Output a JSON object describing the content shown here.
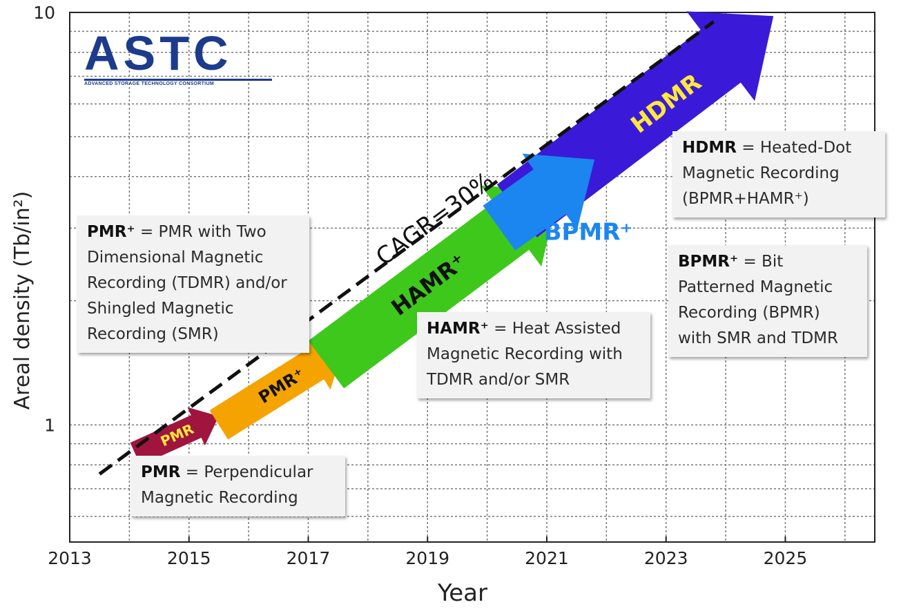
{
  "logo": {
    "name": "ASTC",
    "subtitle": "ADVANCED STORAGE TECHNOLOGY CONSORTIUM"
  },
  "annotations": {
    "cagr": "CAGR=30%",
    "arrow_labels": [
      "PMR",
      "PMR⁺",
      "HAMR⁺",
      "BPMR⁺",
      "HDMR"
    ]
  },
  "legend_boxes": {
    "pmr": {
      "term": "PMR",
      "definition": "= Perpendicular Magnetic Recording"
    },
    "pmr_plus": {
      "term": "PMR⁺",
      "definition": "= PMR with Two Dimensional Magnetic Recording (TDMR) and/or Shingled Magnetic Recording (SMR)"
    },
    "hamr_plus": {
      "term": "HAMR⁺",
      "definition": "= Heat Assisted Magnetic Recording with TDMR and/or SMR"
    },
    "bpmr_plus": {
      "term": "BPMR⁺",
      "definition": "= Bit Patterned Magnetic Recording (BPMR) with SMR and TDMR"
    },
    "hdmr": {
      "term": "HDMR",
      "definition": "= Heated-Dot Magnetic Recording (BPMR+HAMR⁺)"
    }
  },
  "colors": {
    "pmr": "#a0153e",
    "pmr_plus": "#f5a300",
    "hamr_plus": "#3ec81c",
    "bpmr_plus": "#1b86f0",
    "hdmr": "#3a1ad8",
    "arrow_text": "#ffe83a",
    "bpmr_label": "#1b86f0"
  },
  "chart_data": {
    "type": "line",
    "xlabel": "Year",
    "ylabel": "Areal density (Tb/in²)",
    "x_ticks": [
      "2013",
      "2015",
      "2017",
      "2019",
      "2021",
      "2023",
      "2025"
    ],
    "y_ticks": [
      "1",
      "10"
    ],
    "xlim": [
      2013,
      2026.5
    ],
    "ylim": [
      0.52,
      10
    ],
    "y_scale": "log",
    "grid": true,
    "series": [
      {
        "name": "CAGR=30%",
        "style": "dashed",
        "points": [
          {
            "x": 2013.5,
            "y": 0.76
          },
          {
            "x": 2023.8,
            "y": 9.5
          }
        ]
      }
    ],
    "technology_arrows": [
      {
        "label": "PMR",
        "x_start": 2014.1,
        "y_start": 0.85,
        "x_end": 2015.5,
        "y_end": 1.05
      },
      {
        "label": "PMR⁺",
        "x_start": 2015.5,
        "y_start": 1.0,
        "x_end": 2017.6,
        "y_end": 1.55
      },
      {
        "label": "HAMR⁺",
        "x_start": 2017.3,
        "y_start": 1.4,
        "x_end": 2021.2,
        "y_end": 3.7
      },
      {
        "label": "BPMR⁺",
        "x_start": 2020.2,
        "y_start": 3.0,
        "x_end": 2021.8,
        "y_end": 4.4
      },
      {
        "label": "HDMR",
        "x_start": 2020.5,
        "y_start": 3.3,
        "x_end": 2024.8,
        "y_end": 9.8
      }
    ]
  }
}
